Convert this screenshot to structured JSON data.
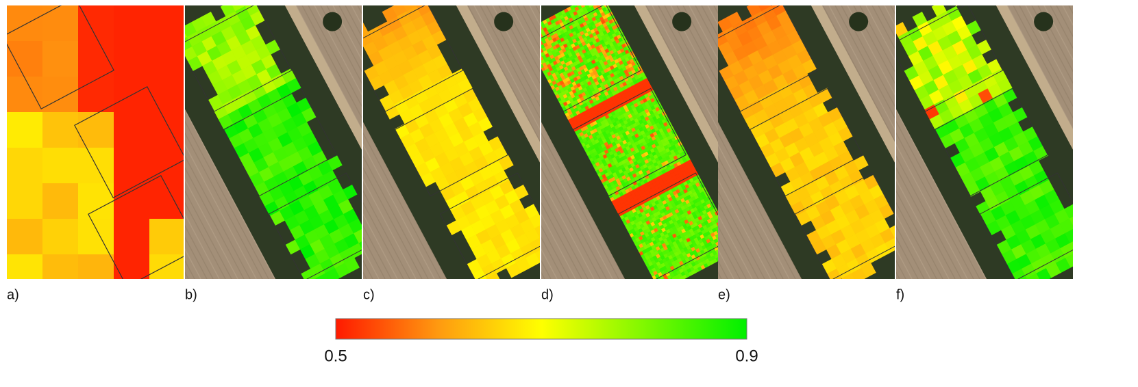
{
  "panels": [
    {
      "label": "a)"
    },
    {
      "label": "b)"
    },
    {
      "label": "c)"
    },
    {
      "label": "d)"
    },
    {
      "label": "e)"
    },
    {
      "label": "f)"
    }
  ],
  "colorbar": {
    "min": 0.5,
    "max": 0.9,
    "ticks": [
      0.5,
      0.9
    ]
  }
}
